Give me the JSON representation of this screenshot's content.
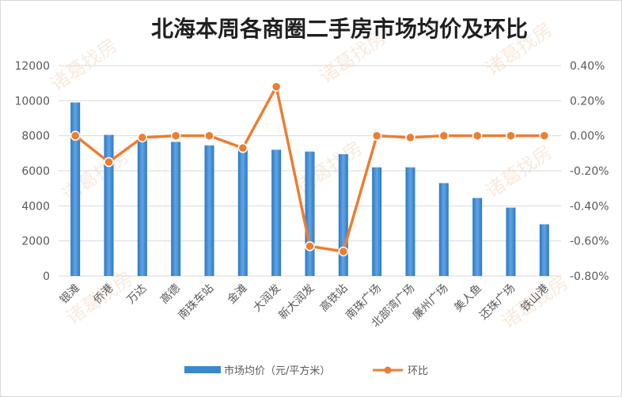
{
  "chart_data": {
    "type": "bar",
    "title": "北海本周各商圈二手房市场均价及环比",
    "categories": [
      "银滩",
      "侨港",
      "万达",
      "高德",
      "南珠车站",
      "金滩",
      "大润发",
      "新大润发",
      "高铁站",
      "南珠广场",
      "北部湾广场",
      "廉州广场",
      "美人鱼",
      "还珠广场",
      "铁山港"
    ],
    "series": [
      {
        "name": "市场均价（元/平方米）",
        "type": "bar",
        "axis": "left",
        "color": "#3a87d0",
        "values": [
          9900,
          8050,
          7850,
          7650,
          7450,
          7350,
          7200,
          7100,
          6950,
          6200,
          6200,
          5300,
          4450,
          3900,
          2950
        ]
      },
      {
        "name": "环比",
        "type": "line",
        "axis": "right",
        "color": "#ed7d31",
        "values": [
          0.0,
          -0.15,
          -0.01,
          0.0,
          0.0,
          -0.07,
          0.28,
          -0.63,
          -0.66,
          0.0,
          -0.01,
          0.0,
          0.0,
          0.0,
          0.0
        ]
      }
    ],
    "y_left": {
      "min": 0,
      "max": 12000,
      "step": 2000,
      "tick_labels": [
        "0",
        "2000",
        "4000",
        "6000",
        "8000",
        "10000",
        "12000"
      ]
    },
    "y_right": {
      "min": -0.8,
      "max": 0.4,
      "step": 0.2,
      "unit": "%",
      "tick_labels": [
        "-0.80%",
        "-0.60%",
        "-0.40%",
        "-0.20%",
        "0.00%",
        "0.20%",
        "0.40%"
      ]
    },
    "grid": true,
    "legend_position": "bottom",
    "watermark": "诸葛找房"
  }
}
